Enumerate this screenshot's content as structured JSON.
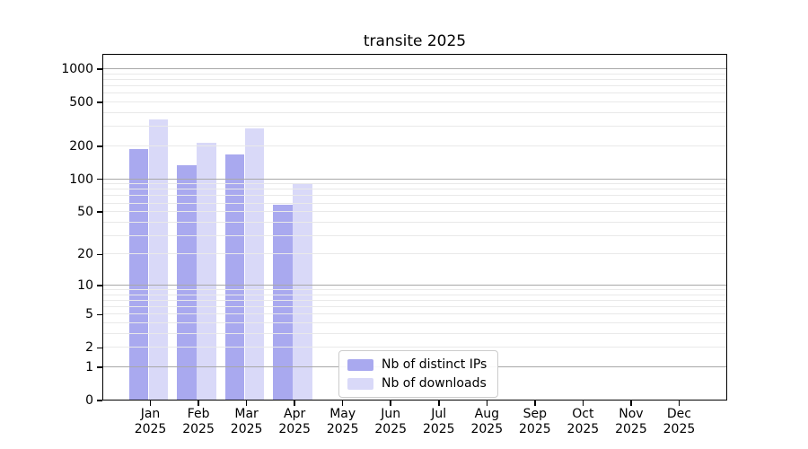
{
  "chart_data": {
    "type": "bar",
    "title": "transite 2025",
    "scale": "log1p",
    "ylim": [
      0,
      1380
    ],
    "grid": true,
    "legend_position": "lower center",
    "x_axis": {
      "categories": [
        "Jan",
        "Feb",
        "Mar",
        "Apr",
        "May",
        "Jun",
        "Jul",
        "Aug",
        "Sep",
        "Oct",
        "Nov",
        "Dec"
      ],
      "year_label": "2025"
    },
    "y_axis": {
      "top": 1380,
      "ticks": [
        {
          "value": 0,
          "label": "0"
        },
        {
          "value": 1,
          "label": "1"
        },
        {
          "value": 2,
          "label": "2"
        },
        {
          "value": 5,
          "label": "5"
        },
        {
          "value": 10,
          "label": "10"
        },
        {
          "value": 20,
          "label": "20"
        },
        {
          "value": 50,
          "label": "50"
        },
        {
          "value": 100,
          "label": "100"
        },
        {
          "value": 200,
          "label": "200"
        },
        {
          "value": 500,
          "label": "500"
        },
        {
          "value": 1000,
          "label": "1000"
        }
      ],
      "major_gridlines": [
        1,
        10,
        100,
        1000
      ],
      "minor_gridlines": [
        2,
        3,
        4,
        5,
        6,
        7,
        8,
        9,
        20,
        30,
        40,
        50,
        60,
        70,
        80,
        90,
        200,
        300,
        400,
        500,
        600,
        700,
        800,
        900
      ]
    },
    "series": [
      {
        "key": "distinct-ips",
        "name": "Nb of distinct IPs",
        "color": "#a9a9ef",
        "values": [
          190,
          135,
          170,
          58,
          0,
          0,
          0,
          0,
          0,
          0,
          0,
          0
        ]
      },
      {
        "key": "downloads",
        "name": "Nb of downloads",
        "color": "#d9d9f8",
        "values": [
          350,
          215,
          290,
          90,
          0,
          0,
          0,
          0,
          0,
          0,
          0,
          0
        ]
      }
    ],
    "colors": {
      "major_grid": "#a8a8a8",
      "minor_grid": "#e9e9e9",
      "spine": "#000000"
    }
  }
}
